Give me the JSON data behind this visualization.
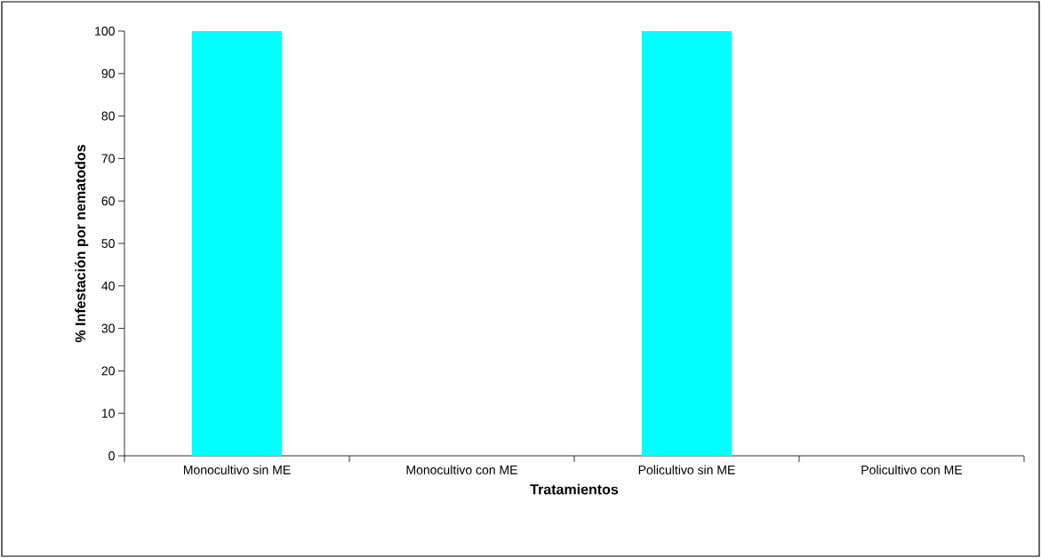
{
  "chart_data": {
    "type": "bar",
    "categories": [
      "Monocultivo sin ME",
      "Monocultivo con ME",
      "Policultivo sin ME",
      "Policultivo con ME"
    ],
    "values": [
      100,
      0,
      100,
      0
    ],
    "color": "#00ffff",
    "xlabel": "Tratamientos",
    "ylabel": "% Infestación por nematodos",
    "ylim": [
      0,
      100
    ],
    "yticks": [
      0,
      10,
      20,
      30,
      40,
      50,
      60,
      70,
      80,
      90,
      100
    ]
  }
}
